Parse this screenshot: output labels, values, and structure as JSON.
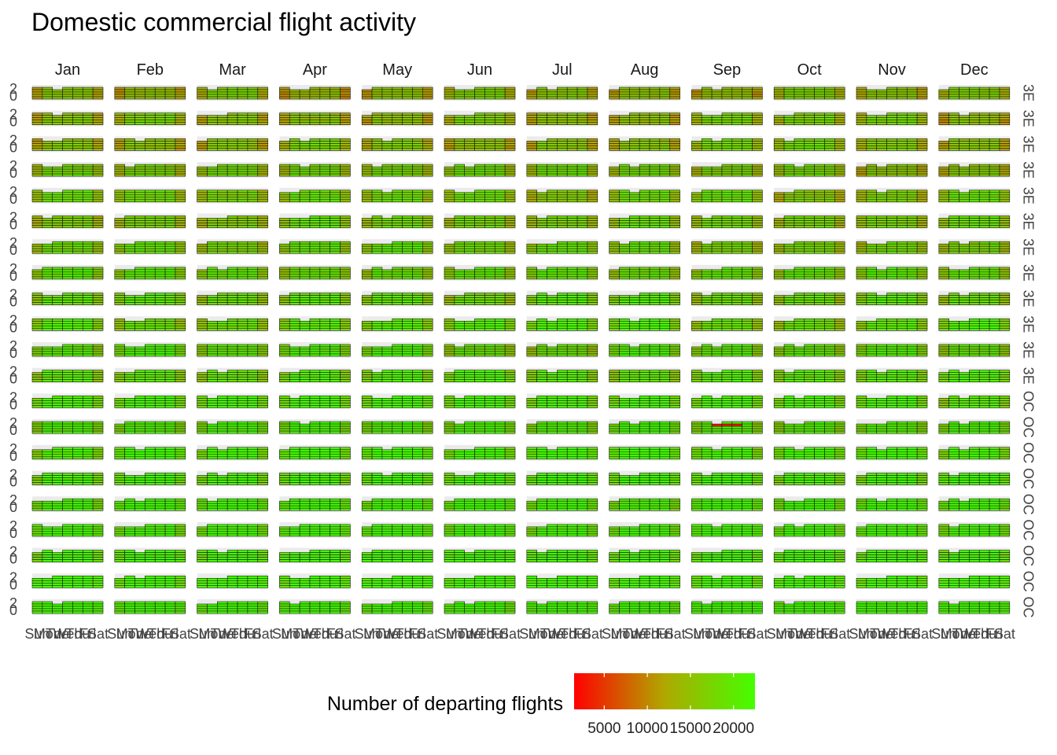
{
  "chart_data": {
    "type": "heatmap",
    "title": "Domestic commercial flight activity",
    "facet_columns": [
      "Jan",
      "Feb",
      "Mar",
      "Apr",
      "May",
      "Jun",
      "Jul",
      "Aug",
      "Sep",
      "Oct",
      "Nov",
      "Dec"
    ],
    "facet_rows": 21,
    "row_strip_labels": [
      "3E",
      "3E",
      "3E",
      "3E",
      "3E",
      "3E",
      "3E",
      "3E",
      "3E",
      "3E",
      "3E",
      "3E",
      "OC",
      "OC",
      "OC",
      "OC",
      "OC",
      "OC",
      "OC",
      "OC",
      "OC"
    ],
    "y_tick_labels": [
      "2",
      "0"
    ],
    "x_tick_labels": [
      "Sun",
      "Mon",
      "Tue",
      "Wed",
      "Thu",
      "Fri",
      "Sat"
    ],
    "x_tick_text": "SMTWTFS MoTuWeTh FriSat",
    "legend": {
      "title": "Number of departing flights",
      "ticks": [
        5000,
        10000,
        15000,
        20000
      ],
      "tick_labels": [
        "5000",
        "10000",
        "15000",
        "20000"
      ],
      "range": [
        1500,
        22500
      ],
      "color_low": "#ff0000",
      "color_high": "#44ff00",
      "placement": "bottom"
    }
  }
}
